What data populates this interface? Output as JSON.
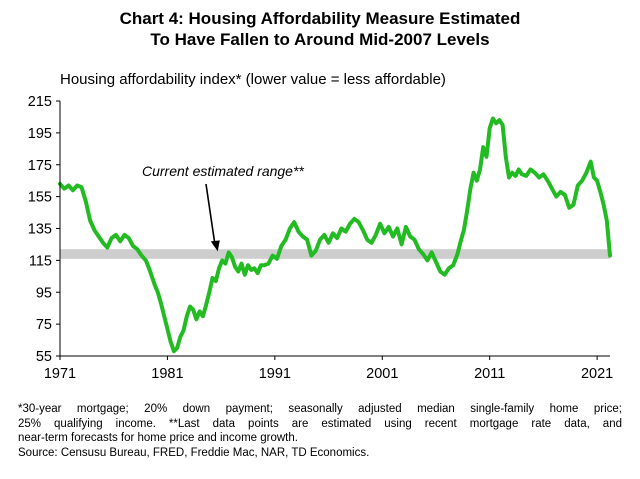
{
  "title_line1": "Chart 4: Housing Affordability  Measure Estimated",
  "title_line2": "To Have Fallen  to Around Mid-2007 Levels",
  "footnote": {
    "line1": "*30-year mortgage;  20% down payment;  seasonally adjusted median  single-family  home price;",
    "line2": "25% qualifying  income.  **Last data points are estimated  using recent mortgage  rate data, and",
    "line3": "near-term  forecasts for home price and income  growth.",
    "line4": "Source: Censusu Bureau, FRED,  Freddie Mac, NAR, TD Economics."
  },
  "chart_data": {
    "type": "line",
    "ylabel": "Housing affordability index* (lower value = less affordable)",
    "ylim": [
      55,
      215
    ],
    "yticks": [
      55,
      75,
      95,
      115,
      135,
      155,
      175,
      195,
      215
    ],
    "xlim": [
      1971,
      2022.2
    ],
    "xticks": [
      1971,
      1981,
      1991,
      2001,
      2011,
      2021
    ],
    "grid": false,
    "annotation": {
      "text": "Current estimated range**",
      "arrow_to": {
        "x": 1985.5,
        "y": 120
      }
    },
    "band": {
      "x": [
        1971,
        2022.2
      ],
      "y": [
        116,
        122
      ]
    },
    "series": [
      {
        "color": "#22bb22",
        "x": [
          1971,
          1971.4,
          1971.8,
          1972.2,
          1972.6,
          1973.0,
          1973.4,
          1973.8,
          1974.2,
          1974.6,
          1975.0,
          1975.4,
          1975.8,
          1976.2,
          1976.6,
          1977.0,
          1977.4,
          1977.8,
          1978.2,
          1978.6,
          1979.0,
          1979.4,
          1979.8,
          1980.1,
          1980.4,
          1980.7,
          1981.0,
          1981.3,
          1981.6,
          1981.9,
          1982.2,
          1982.5,
          1982.8,
          1983.1,
          1983.4,
          1983.7,
          1984.0,
          1984.3,
          1984.6,
          1984.9,
          1985.2,
          1985.5,
          1985.8,
          1986.1,
          1986.4,
          1986.7,
          1987.0,
          1987.3,
          1987.6,
          1987.9,
          1988.2,
          1988.5,
          1988.8,
          1989.1,
          1989.4,
          1989.7,
          1990.0,
          1990.4,
          1990.8,
          1991.2,
          1991.6,
          1992.0,
          1992.4,
          1992.8,
          1993.2,
          1993.6,
          1994.0,
          1994.4,
          1994.8,
          1995.2,
          1995.6,
          1996.0,
          1996.4,
          1996.8,
          1997.2,
          1997.6,
          1998.0,
          1998.4,
          1998.8,
          1999.2,
          1999.6,
          2000.0,
          2000.4,
          2000.8,
          2001.2,
          2001.6,
          2002.0,
          2002.4,
          2002.8,
          2003.2,
          2003.6,
          2004.0,
          2004.4,
          2004.8,
          2005.2,
          2005.6,
          2006.0,
          2006.4,
          2006.8,
          2007.2,
          2007.6,
          2008.0,
          2008.3,
          2008.6,
          2008.9,
          2009.2,
          2009.5,
          2009.8,
          2010.1,
          2010.4,
          2010.7,
          2011.0,
          2011.3,
          2011.6,
          2011.9,
          2012.2,
          2012.5,
          2012.8,
          2013.1,
          2013.4,
          2013.7,
          2014.0,
          2014.4,
          2014.8,
          2015.2,
          2015.6,
          2016.0,
          2016.4,
          2016.8,
          2017.2,
          2017.6,
          2018.0,
          2018.4,
          2018.8,
          2019.2,
          2019.6,
          2020.0,
          2020.4,
          2020.7,
          2021.0,
          2021.3,
          2021.6,
          2021.9,
          2022.2
        ],
        "y": [
          163,
          160,
          162,
          159,
          162,
          161,
          152,
          140,
          134,
          130,
          126,
          123,
          129,
          131,
          127,
          131,
          129,
          124,
          122,
          118,
          115,
          108,
          100,
          95,
          88,
          80,
          72,
          64,
          58,
          60,
          67,
          71,
          80,
          86,
          84,
          78,
          83,
          80,
          87,
          95,
          104,
          102,
          110,
          115,
          113,
          120,
          117,
          111,
          108,
          113,
          106,
          112,
          109,
          110,
          107,
          112,
          112,
          113,
          118,
          116,
          124,
          128,
          135,
          139,
          133,
          130,
          128,
          118,
          121,
          128,
          131,
          126,
          132,
          129,
          135,
          133,
          138,
          141,
          139,
          134,
          128,
          126,
          131,
          138,
          132,
          136,
          130,
          135,
          125,
          136,
          130,
          128,
          122,
          119,
          115,
          120,
          114,
          108,
          106,
          110,
          112,
          119,
          127,
          134,
          146,
          160,
          170,
          165,
          172,
          186,
          180,
          198,
          204,
          201,
          203,
          200,
          180,
          167,
          170,
          168,
          172,
          169,
          168,
          172,
          170,
          167,
          169,
          165,
          160,
          155,
          158,
          156,
          148,
          150,
          162,
          165,
          170,
          177,
          167,
          165,
          158,
          150,
          140,
          118
        ]
      }
    ]
  }
}
